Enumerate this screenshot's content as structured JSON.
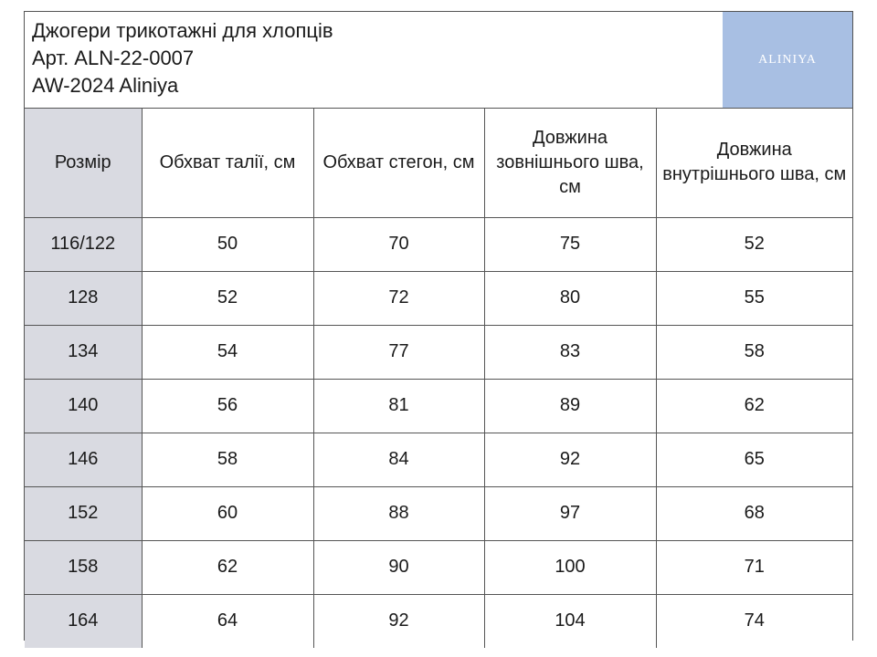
{
  "header": {
    "title_line1": "Джогери трикотажні для хлопців",
    "title_line2": "Арт. ALN-22-0007",
    "title_line3": "AW-2024 Aliniya",
    "logo_text": "ALINIYA",
    "logo_color": "#a8bfe3"
  },
  "table": {
    "columns": [
      "Розмір",
      "Обхват талії, см",
      "Обхват стегон, см",
      "Довжина зовнішнього шва, см",
      "Довжина внутрішнього шва, см"
    ],
    "rows": [
      [
        "116/122",
        "50",
        "70",
        "75",
        "52"
      ],
      [
        "128",
        "52",
        "72",
        "80",
        "55"
      ],
      [
        "134",
        "54",
        "77",
        "83",
        "58"
      ],
      [
        "140",
        "56",
        "81",
        "89",
        "62"
      ],
      [
        "146",
        "58",
        "84",
        "92",
        "65"
      ],
      [
        "152",
        "60",
        "88",
        "97",
        "68"
      ],
      [
        "158",
        "62",
        "90",
        "100",
        "71"
      ],
      [
        "164",
        "64",
        "92",
        "104",
        "74"
      ]
    ],
    "size_column_color": "#d9dae1"
  }
}
